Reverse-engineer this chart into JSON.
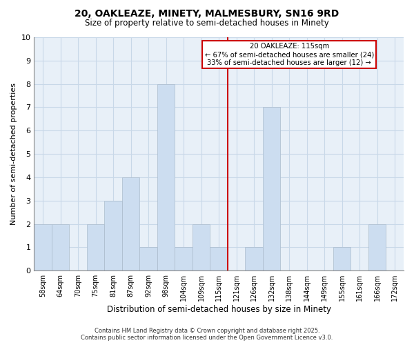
{
  "title": "20, OAKLEAZE, MINETY, MALMESBURY, SN16 9RD",
  "subtitle": "Size of property relative to semi-detached houses in Minety",
  "xlabel": "Distribution of semi-detached houses by size in Minety",
  "ylabel": "Number of semi-detached properties",
  "categories": [
    "58sqm",
    "64sqm",
    "70sqm",
    "75sqm",
    "81sqm",
    "87sqm",
    "92sqm",
    "98sqm",
    "104sqm",
    "109sqm",
    "115sqm",
    "121sqm",
    "126sqm",
    "132sqm",
    "138sqm",
    "144sqm",
    "149sqm",
    "155sqm",
    "161sqm",
    "166sqm",
    "172sqm"
  ],
  "values": [
    2,
    2,
    0,
    2,
    3,
    4,
    1,
    8,
    1,
    2,
    1,
    0,
    1,
    7,
    0,
    0,
    0,
    1,
    0,
    2,
    0
  ],
  "bar_color": "#ccddf0",
  "bar_edgecolor": "#aabbcc",
  "marker_line_index": 10,
  "annotation_title": "20 OAKLEAZE: 115sqm",
  "annotation_line1": "← 67% of semi-detached houses are smaller (24)",
  "annotation_line2": "33% of semi-detached houses are larger (12) →",
  "ylim": [
    0,
    10
  ],
  "yticks": [
    0,
    1,
    2,
    3,
    4,
    5,
    6,
    7,
    8,
    9,
    10
  ],
  "grid_color": "#c8d8e8",
  "background_color": "#e8f0f8",
  "footer_line1": "Contains HM Land Registry data © Crown copyright and database right 2025.",
  "footer_line2": "Contains public sector information licensed under the Open Government Licence v3.0.",
  "annotation_box_edgecolor": "#cc0000",
  "marker_line_color": "#cc0000"
}
